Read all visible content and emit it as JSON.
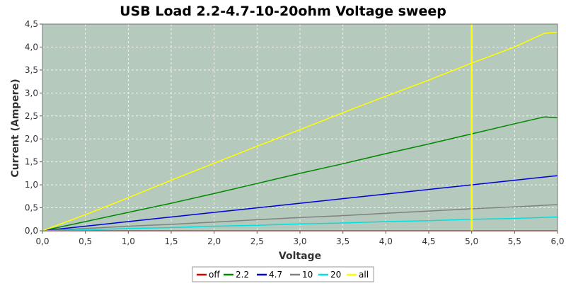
{
  "chart_data": {
    "type": "line",
    "title": "USB Load 2.2-4.7-10-20ohm Voltage sweep",
    "xlabel": "Voltage",
    "ylabel": "Current (Ampere)",
    "xlim": [
      0,
      6
    ],
    "ylim": [
      0,
      4.5
    ],
    "x_ticks": [
      "0,0",
      "0,5",
      "1,0",
      "1,5",
      "2,0",
      "2,5",
      "3,0",
      "3,5",
      "4,0",
      "4,5",
      "5,0",
      "5,5",
      "6,0"
    ],
    "y_ticks": [
      "0,0",
      "0,5",
      "1,0",
      "1,5",
      "2,0",
      "2,5",
      "3,0",
      "3,5",
      "4,0",
      "4,5"
    ],
    "grid": true,
    "background": "#b5c9bc",
    "legend_position": "bottom",
    "marker_line": {
      "x": 5.0,
      "color": "#ffff00"
    },
    "series": [
      {
        "name": "off",
        "color": "#dd0000",
        "x": [
          0,
          6
        ],
        "y": [
          0,
          0
        ]
      },
      {
        "name": "2.2",
        "color": "#008800",
        "x": [
          0,
          0.5,
          1,
          1.5,
          2,
          2.5,
          3,
          3.5,
          4,
          4.5,
          5,
          5.5,
          5.85,
          6
        ],
        "y": [
          0,
          0.2,
          0.4,
          0.6,
          0.81,
          1.03,
          1.25,
          1.46,
          1.68,
          1.89,
          2.11,
          2.33,
          2.48,
          2.46
        ]
      },
      {
        "name": "4.7",
        "color": "#0000dd",
        "x": [
          0,
          0.5,
          1,
          1.5,
          2,
          2.5,
          3,
          3.5,
          4,
          4.5,
          5,
          5.5,
          6
        ],
        "y": [
          0,
          0.1,
          0.2,
          0.3,
          0.4,
          0.5,
          0.6,
          0.7,
          0.8,
          0.9,
          1.0,
          1.1,
          1.2
        ]
      },
      {
        "name": "10",
        "color": "#808080",
        "x": [
          0,
          0.5,
          1,
          1.5,
          2,
          2.5,
          3,
          3.5,
          4,
          4.5,
          5,
          5.5,
          6
        ],
        "y": [
          0,
          0.05,
          0.1,
          0.14,
          0.19,
          0.24,
          0.29,
          0.33,
          0.38,
          0.43,
          0.48,
          0.52,
          0.57
        ]
      },
      {
        "name": "20",
        "color": "#00e0e0",
        "x": [
          0,
          0.5,
          1,
          1.5,
          2,
          2.5,
          3,
          3.5,
          4,
          4.5,
          5,
          5.5,
          6
        ],
        "y": [
          0,
          0.02,
          0.05,
          0.07,
          0.1,
          0.12,
          0.15,
          0.17,
          0.2,
          0.22,
          0.25,
          0.27,
          0.3
        ]
      },
      {
        "name": "all",
        "color": "#ffff00",
        "x": [
          0,
          0.5,
          1,
          1.5,
          2,
          2.5,
          3,
          3.5,
          4,
          4.5,
          5,
          5.5,
          5.85,
          6
        ],
        "y": [
          0,
          0.35,
          0.72,
          1.1,
          1.47,
          1.84,
          2.2,
          2.57,
          2.93,
          3.28,
          3.65,
          4.0,
          4.3,
          4.32
        ]
      }
    ]
  }
}
